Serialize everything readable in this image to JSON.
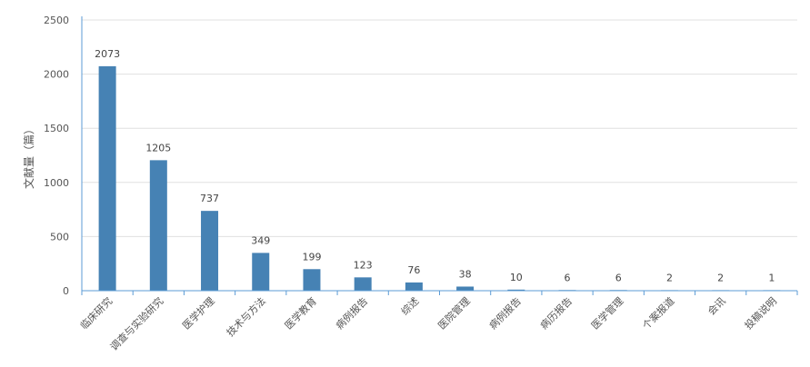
{
  "chart_data": {
    "type": "bar",
    "title": "",
    "xlabel": "",
    "ylabel": "文献量（篇）",
    "ylim": [
      0,
      2500
    ],
    "yticks": [
      0,
      500,
      1000,
      1500,
      2000,
      2500
    ],
    "grid": true,
    "legend": "none",
    "bar_color": "#4682b4",
    "categories": [
      "临床研究",
      "调查与实验研究",
      "医学护理",
      "技术与方法",
      "医学教育",
      "病例报告",
      "综述",
      "医院管理",
      "病例报告",
      "病历报告",
      "医学管理",
      "个案报道",
      "会讯",
      "投稿说明"
    ],
    "values": [
      2073,
      1205,
      737,
      349,
      199,
      123,
      76,
      38,
      10,
      6,
      6,
      2,
      2,
      1
    ]
  },
  "colors": {
    "bar": "#4682b4",
    "axis": "#5b9bd5",
    "grid": "#e0e0e0",
    "text": "#555555"
  }
}
